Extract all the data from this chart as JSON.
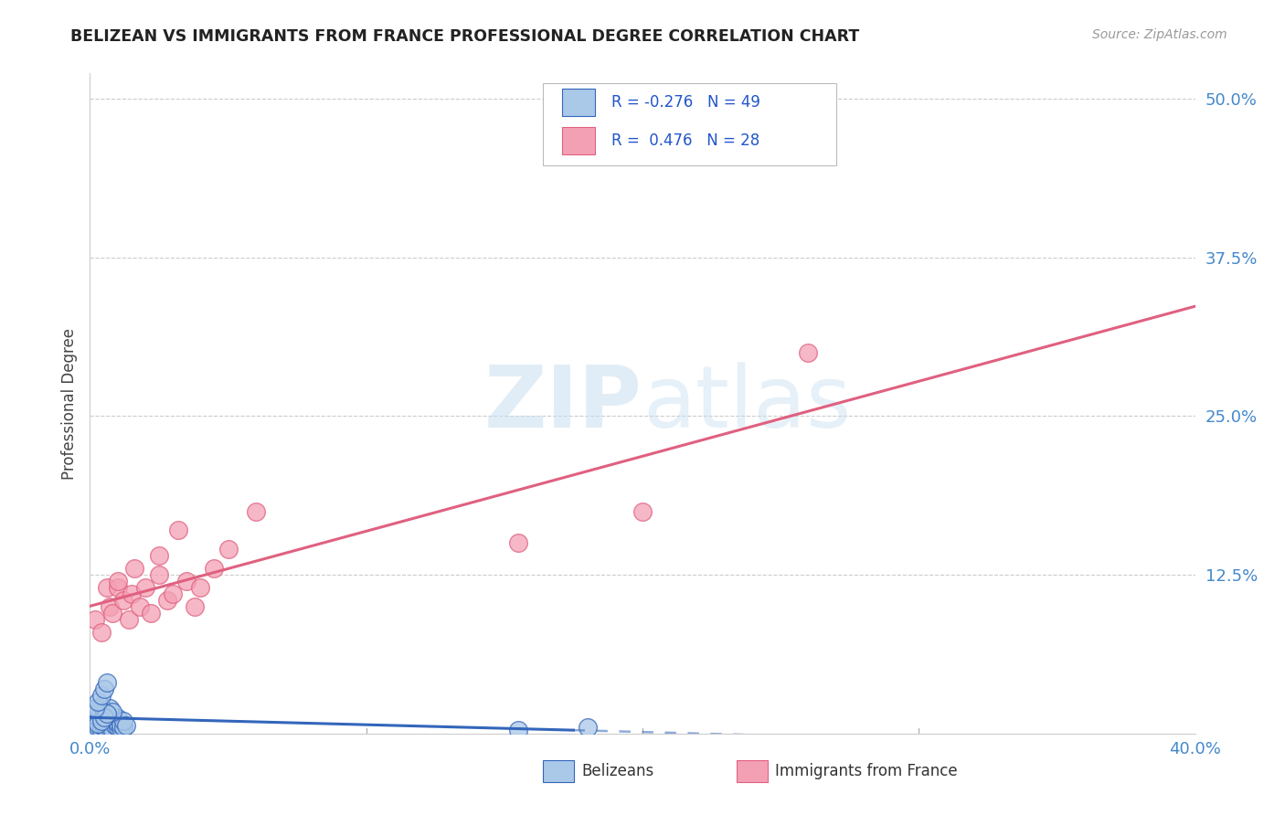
{
  "title": "BELIZEAN VS IMMIGRANTS FROM FRANCE PROFESSIONAL DEGREE CORRELATION CHART",
  "source": "Source: ZipAtlas.com",
  "ylabel": "Professional Degree",
  "ytick_values": [
    0.0,
    0.125,
    0.25,
    0.375,
    0.5
  ],
  "xlim": [
    0.0,
    0.4
  ],
  "ylim": [
    0.0,
    0.52
  ],
  "belizean_R": -0.276,
  "belizean_N": 49,
  "france_R": 0.476,
  "france_N": 28,
  "legend_label_blue": "Belizeans",
  "legend_label_pink": "Immigrants from France",
  "scatter_blue_color": "#aac8e8",
  "scatter_pink_color": "#f4a0b4",
  "line_blue_color": "#3366bb",
  "line_pink_color": "#e06080",
  "background_color": "#ffffff",
  "watermark_color": "#c8dff0",
  "belizean_x": [
    0.001,
    0.002,
    0.003,
    0.003,
    0.004,
    0.004,
    0.004,
    0.005,
    0.005,
    0.005,
    0.006,
    0.006,
    0.006,
    0.006,
    0.007,
    0.007,
    0.007,
    0.008,
    0.008,
    0.008,
    0.009,
    0.009,
    0.01,
    0.01,
    0.01,
    0.011,
    0.011,
    0.012,
    0.012,
    0.013,
    0.001,
    0.002,
    0.003,
    0.004,
    0.005,
    0.006,
    0.007,
    0.008,
    0.003,
    0.004,
    0.005,
    0.006,
    0.002,
    0.003,
    0.004,
    0.005,
    0.006,
    0.155,
    0.18
  ],
  "belizean_y": [
    0.01,
    0.008,
    0.012,
    0.005,
    0.015,
    0.007,
    0.003,
    0.01,
    0.006,
    0.004,
    0.008,
    0.012,
    0.003,
    0.015,
    0.006,
    0.01,
    0.004,
    0.008,
    0.012,
    0.003,
    0.006,
    0.01,
    0.005,
    0.008,
    0.012,
    0.004,
    0.007,
    0.005,
    0.01,
    0.006,
    0.015,
    0.018,
    0.02,
    0.022,
    0.018,
    0.015,
    0.02,
    0.017,
    0.008,
    0.01,
    0.013,
    0.016,
    0.02,
    0.025,
    0.03,
    0.035,
    0.04,
    0.003,
    0.005
  ],
  "france_x": [
    0.002,
    0.004,
    0.006,
    0.007,
    0.008,
    0.01,
    0.01,
    0.012,
    0.014,
    0.015,
    0.016,
    0.018,
    0.02,
    0.022,
    0.025,
    0.025,
    0.028,
    0.03,
    0.032,
    0.035,
    0.038,
    0.04,
    0.045,
    0.05,
    0.06,
    0.155,
    0.2,
    0.26
  ],
  "france_y": [
    0.09,
    0.08,
    0.115,
    0.1,
    0.095,
    0.115,
    0.12,
    0.105,
    0.09,
    0.11,
    0.13,
    0.1,
    0.115,
    0.095,
    0.125,
    0.14,
    0.105,
    0.11,
    0.16,
    0.12,
    0.1,
    0.115,
    0.13,
    0.145,
    0.175,
    0.15,
    0.175,
    0.3
  ]
}
